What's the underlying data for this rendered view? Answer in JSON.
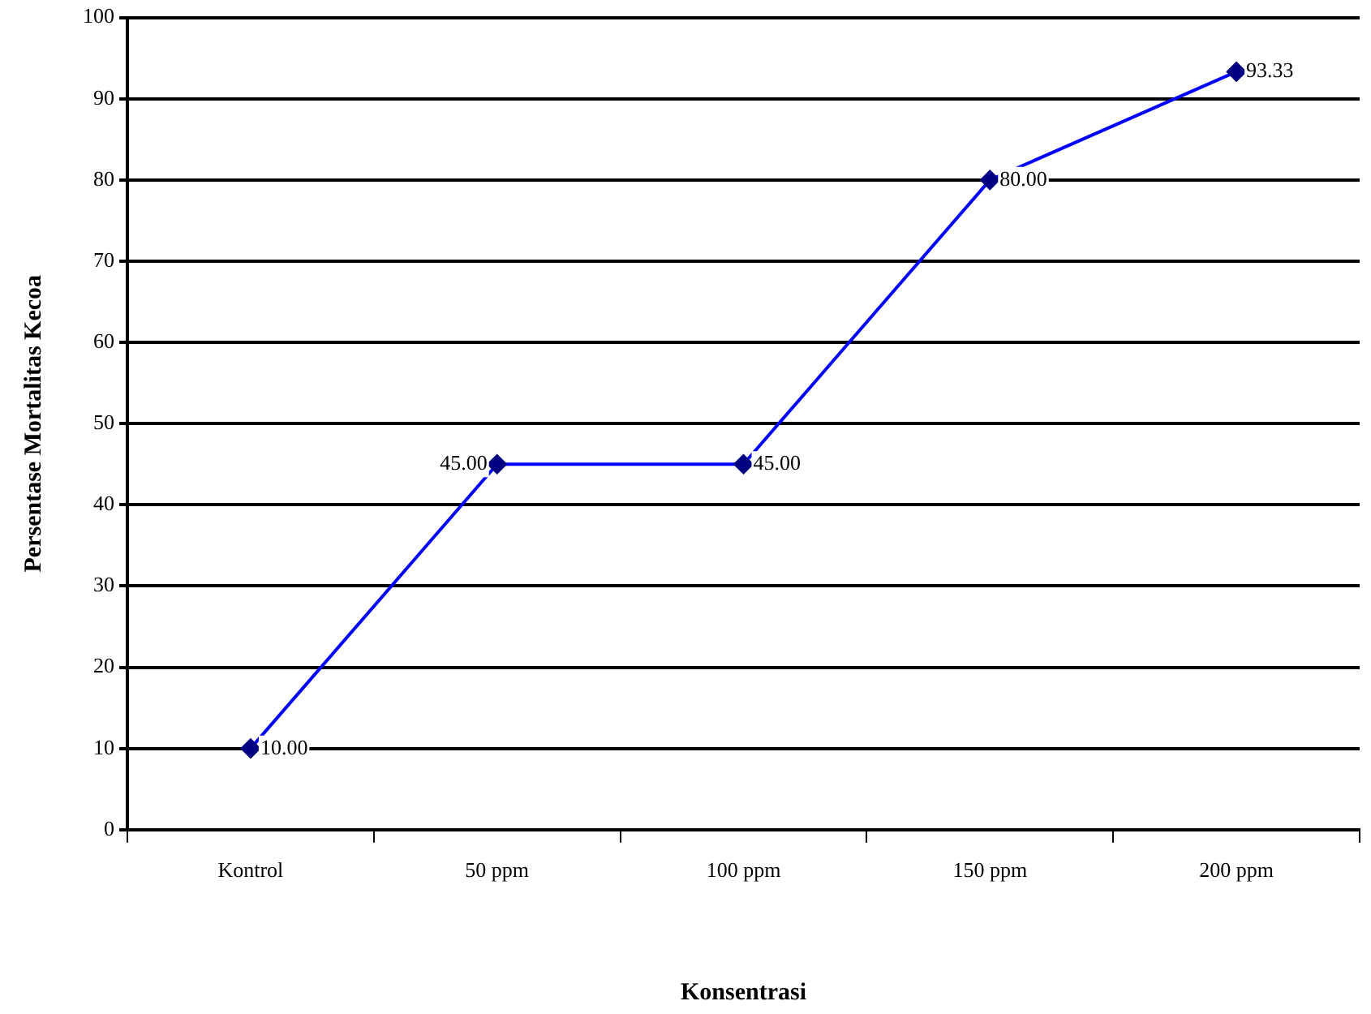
{
  "chart_data": {
    "type": "line",
    "xlabel": "Konsentrasi",
    "ylabel": "Persentase Mortalitas Kecoa",
    "categories": [
      "Kontrol",
      "50 ppm",
      "100 ppm",
      "150 ppm",
      "200 ppm"
    ],
    "series": [
      {
        "color": "#0000ff",
        "values": [
          10,
          45,
          45,
          80,
          93.33
        ],
        "value_labels": [
          "10.00",
          "45.00",
          "45.00",
          "80.00",
          "93.33"
        ]
      }
    ],
    "ylim": [
      0,
      100
    ],
    "yticks": [
      0,
      10,
      20,
      30,
      40,
      50,
      60,
      70,
      80,
      90,
      100
    ],
    "grid": "y",
    "legend": false,
    "marker": "diamond",
    "line_style": "solid"
  }
}
